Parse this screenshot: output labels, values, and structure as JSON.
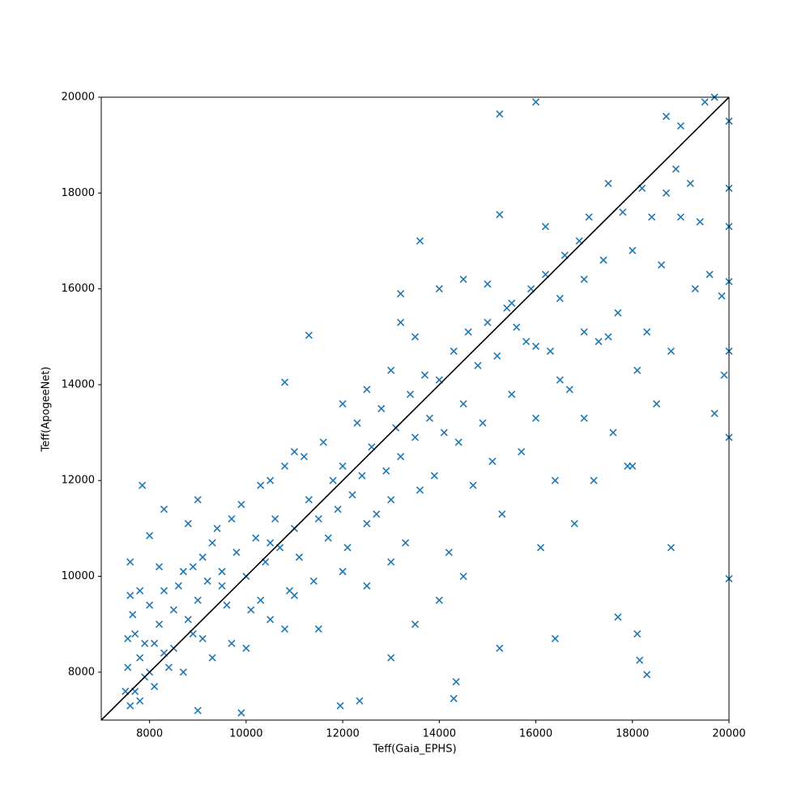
{
  "chart_data": {
    "type": "scatter",
    "x_label": "Teff(Gaia_EPHS)",
    "y_label": "Teff(ApogeeNet)",
    "color": "#1f77b4",
    "marker": "x",
    "xlim": [
      7000,
      20000
    ],
    "ylim": [
      7000,
      20000
    ],
    "xticks": [
      8000,
      10000,
      12000,
      14000,
      16000,
      18000,
      20000
    ],
    "yticks": [
      8000,
      10000,
      12000,
      14000,
      16000,
      18000,
      20000
    ],
    "reference_line": {
      "x": [
        7000,
        20000
      ],
      "y": [
        7000,
        20000
      ],
      "color": "#000000"
    },
    "x": [
      15250,
      16000,
      11300,
      10800,
      7850,
      18300,
      18150,
      18100,
      17700,
      14300,
      14350,
      18800,
      20000,
      19700,
      20000,
      19900,
      20000,
      19850,
      20000,
      20000,
      20000,
      20000,
      19500,
      19700,
      19000,
      18700,
      16400,
      15250,
      13000,
      9000,
      9900,
      11950,
      12350,
      13600,
      15250,
      16200,
      7600,
      8000,
      8300,
      7600,
      7700,
      7550,
      7800,
      7900,
      8100,
      8000,
      8200,
      8300,
      7700,
      7600,
      8500,
      8400,
      8600,
      8800,
      8900,
      9000,
      9100,
      9300,
      9200,
      9500,
      9400,
      9600,
      9800,
      9900,
      10000,
      10100,
      10200,
      10300,
      10400,
      10500,
      10600,
      10700,
      10800,
      10900,
      11000,
      11100,
      11200,
      11300,
      11400,
      11500,
      11600,
      11700,
      11800,
      11900,
      12000,
      12100,
      12200,
      12300,
      12400,
      12500,
      12600,
      12700,
      12800,
      12900,
      13000,
      13100,
      13200,
      13300,
      13400,
      13500,
      13600,
      13700,
      13800,
      13900,
      14000,
      14100,
      14200,
      14300,
      14400,
      14500,
      14600,
      14700,
      14800,
      14900,
      15000,
      15100,
      15200,
      15300,
      15400,
      15500,
      15600,
      15700,
      15800,
      15900,
      16000,
      16100,
      16200,
      16300,
      16400,
      16500,
      16600,
      16700,
      16800,
      16900,
      17000,
      17100,
      17200,
      17300,
      17400,
      17500,
      17600,
      17700,
      17800,
      17900,
      18000,
      18100,
      18200,
      18300,
      18400,
      18500,
      18600,
      18700,
      18800,
      18900,
      19000,
      19200,
      19300,
      19400,
      19600,
      7500,
      7550,
      7650,
      7800,
      7900,
      8000,
      8100,
      8300,
      8500,
      8700,
      8700,
      8900,
      9100,
      9300,
      9500,
      9700,
      9700,
      10000,
      10300,
      10500,
      10800,
      11000,
      11500,
      12000,
      12500,
      13000,
      13500,
      14000,
      14500,
      11000,
      10500,
      9000,
      8800,
      8200,
      7800,
      12000,
      12500,
      13000,
      13500,
      14000,
      14500,
      15000,
      15500,
      13200,
      13200,
      16500,
      16000,
      17000,
      17500,
      17000,
      18000
    ],
    "values": [
      19650,
      19900,
      15030,
      14050,
      11900,
      7950,
      8250,
      8800,
      9150,
      7450,
      7800,
      10600,
      9950,
      13400,
      12900,
      14200,
      14700,
      15850,
      16150,
      17300,
      18100,
      19500,
      19900,
      20000,
      19400,
      19600,
      8700,
      8500,
      8300,
      7200,
      7150,
      7300,
      7400,
      17000,
      17550,
      17300,
      10300,
      10850,
      11400,
      7300,
      7600,
      8100,
      8300,
      7900,
      8600,
      8000,
      9000,
      8400,
      8800,
      9600,
      9300,
      8100,
      9800,
      9100,
      10200,
      9500,
      8700,
      10700,
      9900,
      10100,
      11000,
      9400,
      10500,
      11500,
      10000,
      9300,
      10800,
      11900,
      10300,
      9100,
      11200,
      10600,
      12300,
      9700,
      11000,
      10400,
      12500,
      11600,
      9900,
      11200,
      12800,
      10800,
      12000,
      11400,
      12300,
      10600,
      11700,
      13200,
      12100,
      9800,
      12700,
      11300,
      13500,
      12200,
      11600,
      13100,
      12500,
      10700,
      13800,
      12900,
      11800,
      14200,
      13300,
      12100,
      14100,
      13000,
      10500,
      14700,
      12800,
      13600,
      15100,
      11900,
      14400,
      13200,
      15300,
      12400,
      14600,
      11300,
      15600,
      13800,
      15200,
      12600,
      14900,
      16000,
      13300,
      10600,
      16300,
      14700,
      12000,
      15800,
      16700,
      13900,
      11100,
      17000,
      15100,
      17500,
      12000,
      14900,
      16600,
      18200,
      13000,
      15500,
      17600,
      12300,
      16800,
      14300,
      18100,
      15100,
      17500,
      13600,
      16500,
      18000,
      14700,
      18500,
      17500,
      18200,
      16000,
      17400,
      16300,
      7600,
      8700,
      9200,
      7400,
      8600,
      9400,
      7700,
      9700,
      8500,
      10100,
      8000,
      8800,
      10400,
      8300,
      9800,
      11200,
      8600,
      8500,
      9500,
      10700,
      8900,
      9600,
      8900,
      10100,
      11100,
      10300,
      9000,
      9500,
      10000,
      12600,
      12000,
      11600,
      11100,
      10200,
      9700,
      13600,
      13900,
      14300,
      15000,
      16000,
      16200,
      16100,
      15700,
      15900,
      15300,
      14100,
      14800,
      16200,
      15000,
      13300,
      12300
    ]
  }
}
